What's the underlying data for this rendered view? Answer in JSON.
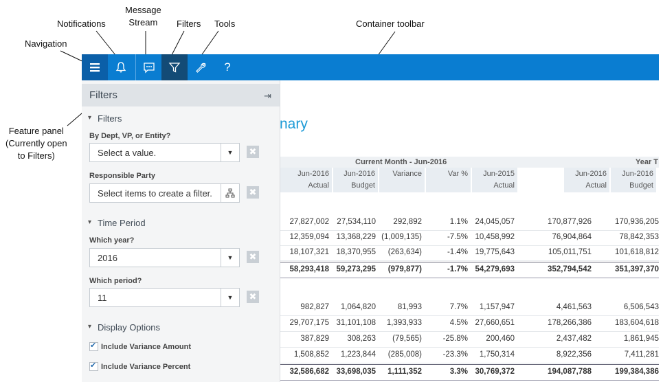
{
  "callouts": {
    "navigation": "Navigation",
    "notifications": "Notifications",
    "message_stream_line1": "Message",
    "message_stream_line2": "Stream",
    "filters": "Filters",
    "tools": "Tools",
    "container_toolbar": "Container toolbar",
    "feature_panel_line1": "Feature panel",
    "feature_panel_line2": "(Currently open",
    "feature_panel_line3": "to Filters)"
  },
  "toolbar": {
    "help_label": "?",
    "icons": [
      "menu-icon",
      "bell-icon",
      "chat-icon",
      "filter-icon",
      "wrench-icon",
      "help-icon"
    ],
    "colors": {
      "bar": "#0a7dd1",
      "nav": "#0b5fa8",
      "active": "#134b76"
    }
  },
  "panel": {
    "title": "Filters",
    "sections": {
      "filters": "Filters",
      "time_period": "Time Period",
      "display_options": "Display Options"
    },
    "fields": {
      "dept_label": "By Dept, VP, or Entity?",
      "dept_value": "Select a value.",
      "party_label": "Responsible Party",
      "party_value": "Select items to create a filter.",
      "year_label": "Which year?",
      "year_value": "2016",
      "period_label": "Which period?",
      "period_value": "11"
    },
    "options": {
      "variance_amount": "Include Variance Amount",
      "variance_percent": "Include Variance Percent"
    }
  },
  "report": {
    "title_fragment": "nary",
    "group_current": "Current Month - Jun-2016",
    "group_year": "Year T",
    "columns": [
      {
        "l1": "Jun-2016",
        "l2": "Actual"
      },
      {
        "l1": "Jun-2016",
        "l2": "Budget"
      },
      {
        "l1": "",
        "l2": "Variance"
      },
      {
        "l1": "",
        "l2": "Var %"
      },
      {
        "l1": "Jun-2015",
        "l2": "Actual"
      },
      {
        "l1": "Jun-2016",
        "l2": "Actual"
      },
      {
        "l1": "Jun-2016",
        "l2": "Budget"
      }
    ],
    "rows": [
      [
        "27,827,002",
        "27,534,110",
        "292,892",
        "1.1%",
        "24,045,057",
        "170,877,926",
        "170,936,205"
      ],
      [
        "12,359,094",
        "13,368,229",
        "(1,009,135)",
        "-7.5%",
        "10,458,992",
        "76,904,864",
        "78,842,353"
      ],
      [
        "18,107,321",
        "18,370,955",
        "(263,634)",
        "-1.4%",
        "19,775,643",
        "105,011,751",
        "101,618,812"
      ],
      [
        "58,293,418",
        "59,273,295",
        "(979,877)",
        "-1.7%",
        "54,279,693",
        "352,794,542",
        "351,397,370"
      ],
      [
        "982,827",
        "1,064,820",
        "81,993",
        "7.7%",
        "1,157,947",
        "4,461,563",
        "6,506,543"
      ],
      [
        "29,707,175",
        "31,101,108",
        "1,393,933",
        "4.5%",
        "27,660,651",
        "178,266,386",
        "183,604,618"
      ],
      [
        "387,829",
        "308,263",
        "(79,565)",
        "-25.8%",
        "200,460",
        "2,437,482",
        "1,861,945"
      ],
      [
        "1,508,852",
        "1,223,844",
        "(285,008)",
        "-23.3%",
        "1,750,314",
        "8,922,356",
        "7,411,281"
      ],
      [
        "32,586,682",
        "33,698,035",
        "1,111,352",
        "3.3%",
        "30,769,372",
        "194,087,788",
        "199,384,386"
      ]
    ]
  }
}
